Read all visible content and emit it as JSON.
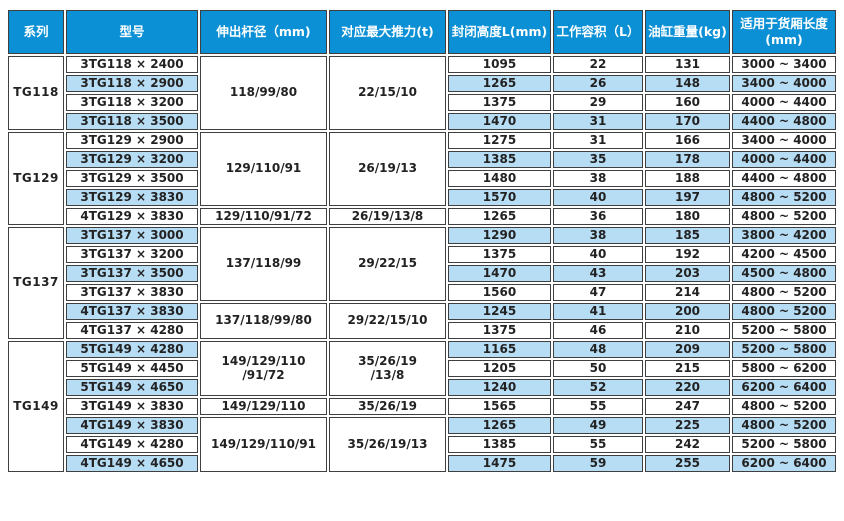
{
  "colors": {
    "header_bg": "#0b90d5",
    "header_text": "#ffffff",
    "stripe_blue": "#b7ddf4",
    "stripe_white": "#ffffff",
    "border": "#3f3f3f",
    "body_text": "#222222"
  },
  "table": {
    "headers": [
      "系列",
      "型号",
      "伸出杆径（mm)",
      "对应最大推力(t)",
      "封闭高度L(mm)",
      "工作容积（L）",
      "油缸重量(kg)",
      "适用于货厢长度\n(mm)"
    ],
    "sections": [
      {
        "series": "TG118",
        "rod_groups": [
          {
            "span": 4,
            "text": "118/99/80"
          }
        ],
        "thrust_groups": [
          {
            "span": 4,
            "text": "22/15/10"
          }
        ],
        "rows": [
          {
            "model": "3TG118 × 2400",
            "closed_height_mm": "1095",
            "working_volume_l": "22",
            "weight_kg": "131",
            "box_length_mm": "3000 ~ 3400"
          },
          {
            "model": "3TG118 × 2900",
            "closed_height_mm": "1265",
            "working_volume_l": "26",
            "weight_kg": "148",
            "box_length_mm": "3400 ~ 4000"
          },
          {
            "model": "3TG118 × 3200",
            "closed_height_mm": "1375",
            "working_volume_l": "29",
            "weight_kg": "160",
            "box_length_mm": "4000 ~ 4400"
          },
          {
            "model": "3TG118 × 3500",
            "closed_height_mm": "1470",
            "working_volume_l": "31",
            "weight_kg": "170",
            "box_length_mm": "4400 ~ 4800"
          }
        ]
      },
      {
        "series": "TG129",
        "rod_groups": [
          {
            "span": 4,
            "text": "129/110/91"
          },
          {
            "span": 1,
            "text": "129/110/91/72"
          }
        ],
        "thrust_groups": [
          {
            "span": 4,
            "text": "26/19/13"
          },
          {
            "span": 1,
            "text": "26/19/13/8"
          }
        ],
        "rows": [
          {
            "model": "3TG129 × 2900",
            "closed_height_mm": "1275",
            "working_volume_l": "31",
            "weight_kg": "166",
            "box_length_mm": "3400 ~ 4000"
          },
          {
            "model": "3TG129 × 3200",
            "closed_height_mm": "1385",
            "working_volume_l": "35",
            "weight_kg": "178",
            "box_length_mm": "4000 ~ 4400"
          },
          {
            "model": "3TG129 × 3500",
            "closed_height_mm": "1480",
            "working_volume_l": "38",
            "weight_kg": "188",
            "box_length_mm": "4400 ~ 4800"
          },
          {
            "model": "3TG129 × 3830",
            "closed_height_mm": "1570",
            "working_volume_l": "40",
            "weight_kg": "197",
            "box_length_mm": "4800 ~ 5200"
          },
          {
            "model": "4TG129 × 3830",
            "closed_height_mm": "1265",
            "working_volume_l": "36",
            "weight_kg": "180",
            "box_length_mm": "4800 ~ 5200"
          }
        ]
      },
      {
        "series": "TG137",
        "rod_groups": [
          {
            "span": 4,
            "text": "137/118/99"
          },
          {
            "span": 2,
            "text": "137/118/99/80"
          }
        ],
        "thrust_groups": [
          {
            "span": 4,
            "text": "29/22/15"
          },
          {
            "span": 2,
            "text": "29/22/15/10"
          }
        ],
        "rows": [
          {
            "model": "3TG137 × 3000",
            "closed_height_mm": "1290",
            "working_volume_l": "38",
            "weight_kg": "185",
            "box_length_mm": "3800 ~ 4200"
          },
          {
            "model": "3TG137 × 3200",
            "closed_height_mm": "1375",
            "working_volume_l": "40",
            "weight_kg": "192",
            "box_length_mm": "4200 ~ 4500"
          },
          {
            "model": "3TG137 × 3500",
            "closed_height_mm": "1470",
            "working_volume_l": "43",
            "weight_kg": "203",
            "box_length_mm": "4500 ~ 4800"
          },
          {
            "model": "3TG137 × 3830",
            "closed_height_mm": "1560",
            "working_volume_l": "47",
            "weight_kg": "214",
            "box_length_mm": "4800 ~ 5200"
          },
          {
            "model": "4TG137 × 3830",
            "closed_height_mm": "1245",
            "working_volume_l": "41",
            "weight_kg": "200",
            "box_length_mm": "4800 ~ 5200"
          },
          {
            "model": "4TG137 × 4280",
            "closed_height_mm": "1375",
            "working_volume_l": "46",
            "weight_kg": "210",
            "box_length_mm": "5200 ~ 5800"
          }
        ]
      },
      {
        "series": "TG149",
        "rod_groups": [
          {
            "span": 3,
            "text": "149/129/110\n/91/72"
          },
          {
            "span": 1,
            "text": "149/129/110"
          },
          {
            "span": 3,
            "text": "149/129/110/91"
          }
        ],
        "thrust_groups": [
          {
            "span": 3,
            "text": "35/26/19\n/13/8"
          },
          {
            "span": 1,
            "text": "35/26/19"
          },
          {
            "span": 3,
            "text": "35/26/19/13"
          }
        ],
        "rows": [
          {
            "model": "5TG149 × 4280",
            "closed_height_mm": "1165",
            "working_volume_l": "48",
            "weight_kg": "209",
            "box_length_mm": "5200 ~ 5800"
          },
          {
            "model": "5TG149 × 4450",
            "closed_height_mm": "1205",
            "working_volume_l": "50",
            "weight_kg": "215",
            "box_length_mm": "5800 ~ 6200"
          },
          {
            "model": "5TG149 × 4650",
            "closed_height_mm": "1240",
            "working_volume_l": "52",
            "weight_kg": "220",
            "box_length_mm": "6200 ~ 6400"
          },
          {
            "model": "3TG149 × 3830",
            "closed_height_mm": "1565",
            "working_volume_l": "55",
            "weight_kg": "247",
            "box_length_mm": "4800 ~ 5200"
          },
          {
            "model": "4TG149 × 3830",
            "closed_height_mm": "1265",
            "working_volume_l": "49",
            "weight_kg": "225",
            "box_length_mm": "4800 ~ 5200"
          },
          {
            "model": "4TG149 × 4280",
            "closed_height_mm": "1385",
            "working_volume_l": "55",
            "weight_kg": "242",
            "box_length_mm": "5200 ~ 5800"
          },
          {
            "model": "4TG149 × 4650",
            "closed_height_mm": "1475",
            "working_volume_l": "59",
            "weight_kg": "255",
            "box_length_mm": "6200 ~ 6400"
          }
        ]
      }
    ]
  }
}
